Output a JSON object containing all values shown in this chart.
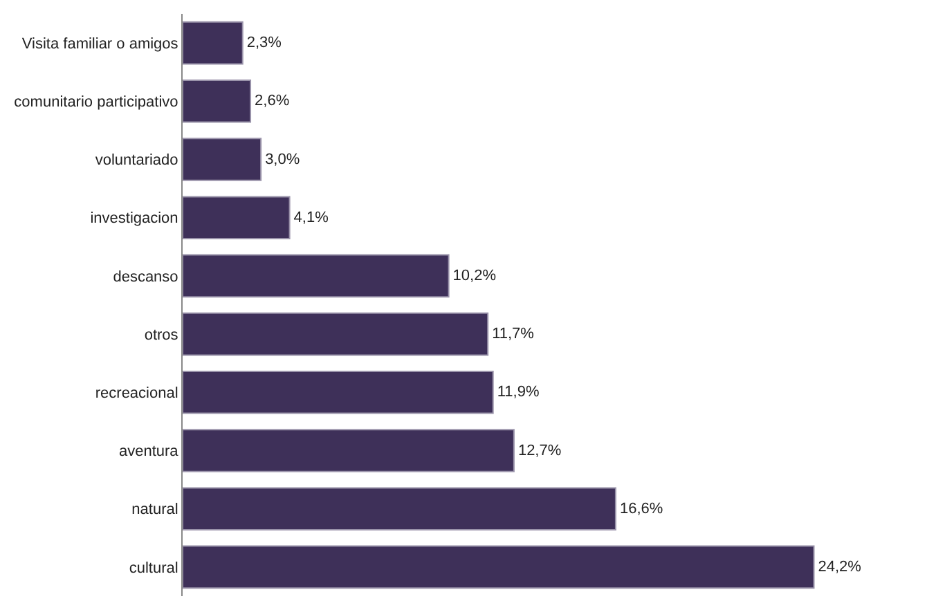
{
  "chart_data": {
    "type": "bar",
    "orientation": "horizontal",
    "categories": [
      "Visita familiar o amigos",
      "comunitario participativo",
      "voluntariado",
      "investigacion",
      "descanso",
      "otros",
      "recreacional",
      "aventura",
      "natural",
      "cultural"
    ],
    "values": [
      2.3,
      2.6,
      3.0,
      4.1,
      10.2,
      11.7,
      11.9,
      12.7,
      16.6,
      24.2
    ],
    "value_labels": [
      "2,3%",
      "2,6%",
      "3,0%",
      "4,1%",
      "10,2%",
      "11,7%",
      "11,9%",
      "12,7%",
      "16,6%",
      "24,2%"
    ],
    "color": "#3e3059"
  }
}
